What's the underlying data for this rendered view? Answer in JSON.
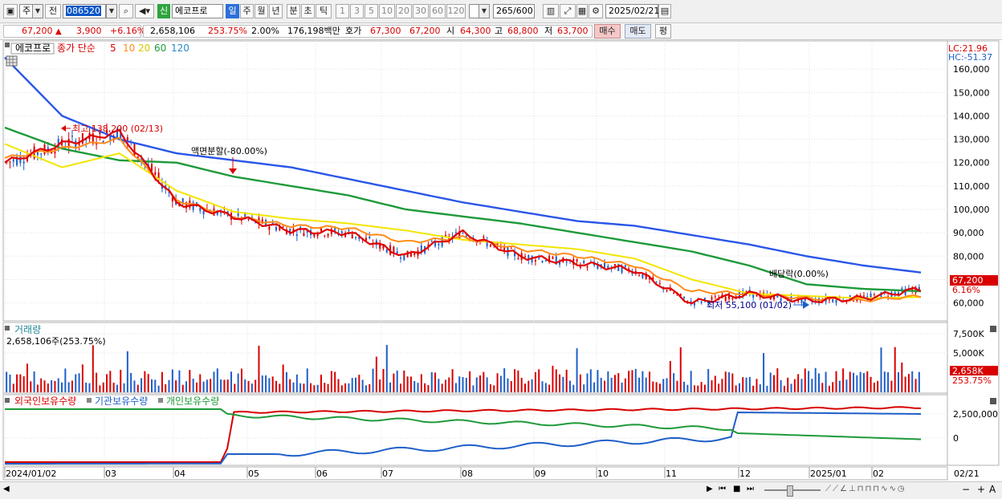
{
  "toolbar": {
    "period_type": "주",
    "prev_label": "전",
    "code": "086520",
    "name": "에코프로",
    "badge_new": "신",
    "periods": [
      "일",
      "주",
      "월",
      "년",
      "분",
      "초",
      "틱"
    ],
    "ticks": [
      "1",
      "3",
      "5",
      "10",
      "20",
      "30",
      "60",
      "120"
    ],
    "count": "265",
    "count_max": "/600",
    "date": "2025/02/21"
  },
  "quote": {
    "price": "67,200",
    "change": "3,900",
    "change_pct": "+6.16%",
    "volume": "2,658,106",
    "volume_pct": "253.75%",
    "turnover": "2.00%",
    "value": "176,198백만",
    "bid_label": "호가",
    "ask": "67,300",
    "bid": "67,200",
    "open_label": "시",
    "open": "64,300",
    "high_label": "고",
    "high": "68,800",
    "low_label": "저",
    "low": "63,700",
    "buy_label": "매수",
    "sell_label": "매도",
    "avg_label": "평"
  },
  "main_legend": {
    "name": "에코프로",
    "close_label": "종가 단순",
    "ma": [
      "5",
      "10",
      "20",
      "60",
      "120"
    ]
  },
  "lc": "LC:21.96",
  "hc": "HC:-51.37",
  "annotations": {
    "high": "최고 138,200 (02/13)",
    "split": "액면분할(-80.00%)",
    "drop": "배당락(0.00%)",
    "low": "최저 55,100 (01/02)"
  },
  "last_price_tag": "67,200",
  "last_pct_tag": "6.16%",
  "volume_legend": "거래량",
  "volume_info": "2,658,106주(253.75%)",
  "volume_tag": "2,658K",
  "volume_pct_tag": "253.75%",
  "holders_legend": [
    "외국인보유수량",
    "기관보유수량",
    "개인보유수량"
  ],
  "x_labels": [
    "2024/01/02",
    "03",
    "04",
    "05",
    "06",
    "07",
    "08",
    "09",
    "10",
    "11",
    "12",
    "2025/01",
    "02",
    "02/21"
  ],
  "colors": {
    "up": "#d80000",
    "down": "#1e5fc8",
    "ma5": "#e00000",
    "ma10": "#ff8c1a",
    "ma20": "#f2e600",
    "ma60": "#1e9a3a",
    "ma120": "#2a56e8"
  },
  "chart_data": {
    "type": "line",
    "title": "에코프로",
    "y_ticks": [
      60000,
      70000,
      80000,
      90000,
      100000,
      110000,
      120000,
      130000,
      140000,
      150000,
      160000
    ],
    "volume_ticks": [
      "7,500K",
      "5,000K"
    ],
    "holders_ticks": [
      "2,500,000",
      "0"
    ],
    "ylim": [
      53000,
      170000
    ],
    "series": [
      {
        "name": "120",
        "values": [
          165000,
          140000,
          130000,
          124000,
          121000,
          118000,
          113000,
          108000,
          103000,
          99000,
          95000,
          93000,
          89000,
          85000,
          80000,
          76000,
          73000
        ]
      },
      {
        "name": "60",
        "values": [
          135000,
          126000,
          121000,
          120000,
          114000,
          110000,
          106000,
          100000,
          97000,
          94000,
          90000,
          86000,
          82000,
          76000,
          68000,
          66000,
          65000
        ]
      },
      {
        "name": "20",
        "values": [
          128000,
          118000,
          124000,
          108000,
          99000,
          96000,
          94000,
          91000,
          87000,
          85000,
          83000,
          79000,
          70000,
          64000,
          63000,
          62000,
          62500
        ]
      },
      {
        "name": "10",
        "values": [
          122000,
          126000,
          130000,
          104000,
          97000,
          93000,
          92000,
          86000,
          88000,
          83000,
          80000,
          76000,
          65000,
          64000,
          62000,
          61000,
          63000
        ]
      },
      {
        "name": "5",
        "values": [
          120000,
          128000,
          133000,
          103000,
          97000,
          91000,
          90000,
          80000,
          90000,
          80000,
          77000,
          74000,
          60000,
          64000,
          61000,
          62000,
          66000
        ]
      }
    ]
  }
}
